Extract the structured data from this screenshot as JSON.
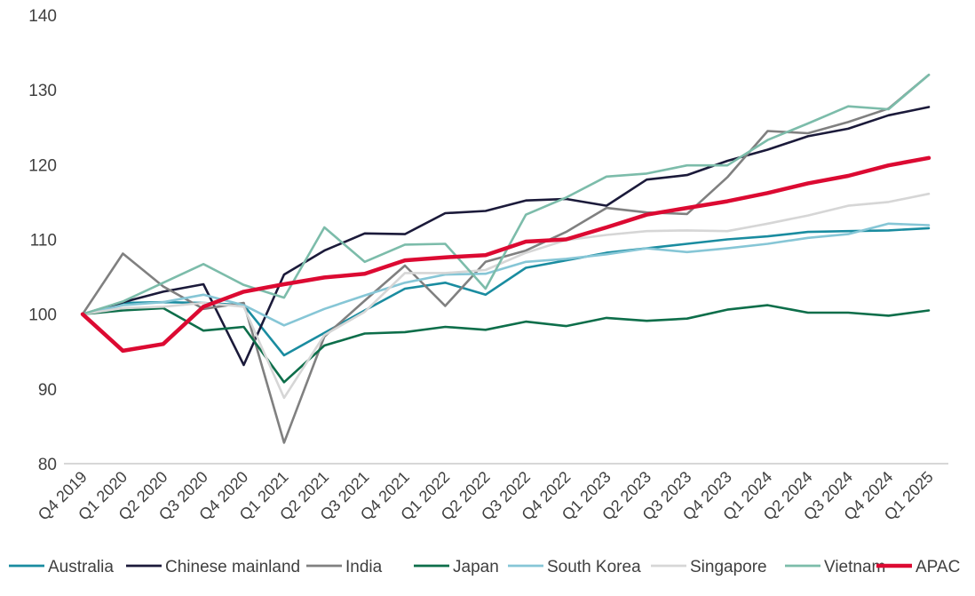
{
  "chart_data": {
    "type": "line",
    "title": "",
    "xlabel": "",
    "ylabel": "",
    "ylim": [
      80,
      140
    ],
    "yticks": [
      80,
      90,
      100,
      110,
      120,
      130,
      140
    ],
    "grid": false,
    "legend_position": "bottom",
    "categories": [
      "Q4 2019",
      "Q1 2020",
      "Q2 2020",
      "Q3 2020",
      "Q4 2020",
      "Q1 2021",
      "Q2 2021",
      "Q3 2021",
      "Q4 2021",
      "Q1 2022",
      "Q2 2022",
      "Q3 2022",
      "Q4 2022",
      "Q1 2023",
      "Q2 2023",
      "Q3 2023",
      "Q4 2023",
      "Q1 2024",
      "Q2 2024",
      "Q3 2024",
      "Q4 2024",
      "Q1 2025"
    ],
    "series": [
      {
        "name": "Australia",
        "color": "#1a8ca0",
        "values": [
          100,
          101.5,
          101.6,
          101.5,
          101.2,
          94.5,
          97.5,
          100.5,
          103.4,
          104.2,
          102.6,
          106.2,
          107.2,
          108.2,
          108.8,
          109.4,
          110.0,
          110.4,
          111.0,
          111.1,
          111.2,
          111.5
        ]
      },
      {
        "name": "Chinese mainland",
        "color": "#1b1a3a",
        "values": [
          100,
          101.6,
          103.0,
          104.0,
          93.2,
          105.3,
          108.5,
          110.8,
          110.7,
          113.5,
          113.8,
          115.2,
          115.4,
          114.5,
          118.0,
          118.6,
          120.5,
          122.0,
          123.8,
          124.8,
          126.6,
          127.7
        ]
      },
      {
        "name": "India",
        "color": "#808080",
        "values": [
          100,
          108.1,
          103.7,
          100.7,
          101.5,
          82.8,
          97.0,
          101.8,
          106.5,
          101.1,
          107.0,
          108.5,
          111.0,
          114.2,
          113.6,
          113.4,
          118.3,
          124.5,
          124.2,
          125.7,
          127.5,
          132.0
        ]
      },
      {
        "name": "Japan",
        "color": "#0d6e4a",
        "values": [
          100,
          100.5,
          100.8,
          97.8,
          98.3,
          90.9,
          95.8,
          97.4,
          97.6,
          98.3,
          97.9,
          99.0,
          98.4,
          99.5,
          99.1,
          99.4,
          100.6,
          101.2,
          100.2,
          100.2,
          99.8,
          100.5
        ]
      },
      {
        "name": "South Korea",
        "color": "#86c6d6",
        "values": [
          100,
          101.2,
          101.6,
          102.6,
          101.2,
          98.5,
          100.7,
          102.5,
          104.2,
          105.3,
          105.4,
          107.0,
          107.4,
          108.0,
          108.8,
          108.3,
          108.8,
          109.4,
          110.2,
          110.7,
          112.1,
          111.9
        ]
      },
      {
        "name": "Singapore",
        "color": "#d6d6d6",
        "values": [
          100,
          100.8,
          101.0,
          101.5,
          101.0,
          88.8,
          97.2,
          100.3,
          105.5,
          105.5,
          105.9,
          108.2,
          109.9,
          110.6,
          111.1,
          111.2,
          111.1,
          112.1,
          113.2,
          114.5,
          115.0,
          116.1
        ]
      },
      {
        "name": "Vietnam",
        "color": "#7cbcaa",
        "values": [
          100,
          101.7,
          104.2,
          106.7,
          103.9,
          102.2,
          111.6,
          107.0,
          109.3,
          109.4,
          103.4,
          113.3,
          115.6,
          118.4,
          118.8,
          119.9,
          119.9,
          123.3,
          125.5,
          127.8,
          127.4,
          132.0
        ]
      },
      {
        "name": "APAC",
        "color": "#dc0a32",
        "values": [
          100,
          95.1,
          96.0,
          101.0,
          103.0,
          104.0,
          104.9,
          105.4,
          107.2,
          107.6,
          107.9,
          109.7,
          110.0,
          111.6,
          113.3,
          114.2,
          115.1,
          116.2,
          117.5,
          118.5,
          119.9,
          120.9
        ]
      }
    ]
  }
}
